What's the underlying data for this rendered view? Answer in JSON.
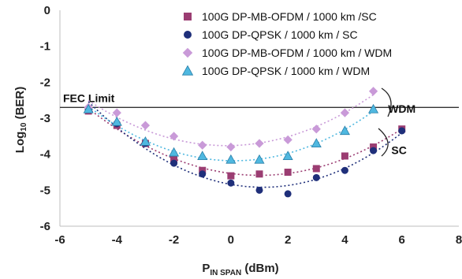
{
  "chart_data": {
    "type": "scatter",
    "title": "",
    "xlabel": {
      "main": "P",
      "sub": "IN SPAN",
      "unit": " (dBm)"
    },
    "ylabel": {
      "pre": "Log",
      "sub": "10",
      "post": " (BER)"
    },
    "xlim": [
      -6,
      8
    ],
    "ylim": [
      -6,
      0
    ],
    "xticks": [
      -6,
      -4,
      -2,
      0,
      2,
      4,
      6,
      8
    ],
    "yticks": [
      0,
      -1,
      -2,
      -3,
      -4,
      -5,
      -6
    ],
    "xtick_labels": [
      "-6",
      "-4",
      "-2",
      "0",
      "2",
      "4",
      "6",
      "8"
    ],
    "ytick_labels": [
      "0",
      "-1",
      "-2",
      "-3",
      "-4",
      "-5",
      "-6"
    ],
    "grid": false,
    "legend_position": "top-right",
    "fec_limit": {
      "y": -2.7,
      "label": "FEC Limit"
    },
    "annotations": [
      {
        "text": "WDM",
        "x": 6.0,
        "y": -2.85
      },
      {
        "text": "SC",
        "x": 5.9,
        "y": -4.0
      }
    ],
    "series": [
      {
        "name": "100G DP-MB-OFDM / 1000 km /SC",
        "marker": "square",
        "color": "#9b3d72",
        "x": [
          -5,
          -4,
          -3,
          -2,
          -1,
          0,
          1,
          2,
          3,
          4,
          5,
          6
        ],
        "y": [
          -2.8,
          -3.2,
          -3.7,
          -4.15,
          -4.45,
          -4.6,
          -4.55,
          -4.5,
          -4.4,
          -4.05,
          -3.8,
          -3.3
        ]
      },
      {
        "name": "100G DP-QPSK / 1000 km / SC",
        "marker": "circle",
        "color": "#1f2f7a",
        "x": [
          -5,
          -4,
          -3,
          -2,
          -1,
          0,
          1,
          2,
          3,
          4,
          5,
          6
        ],
        "y": [
          -2.75,
          -3.15,
          -3.7,
          -4.25,
          -4.55,
          -4.8,
          -5.0,
          -5.1,
          -4.65,
          -4.45,
          -3.9,
          -3.35
        ]
      },
      {
        "name": "100G DP-MB-OFDM / 1000 km / WDM",
        "marker": "diamond",
        "color": "#c99ad8",
        "x": [
          -5,
          -4,
          -3,
          -2,
          -1,
          0,
          1,
          2,
          3,
          4,
          5
        ],
        "y": [
          -2.7,
          -2.85,
          -3.2,
          -3.5,
          -3.75,
          -3.8,
          -3.7,
          -3.6,
          -3.3,
          -2.85,
          -2.25
        ]
      },
      {
        "name": "100G DP-QPSK / 1000 km / WDM",
        "marker": "triangle",
        "color": "#4fb8e0",
        "x": [
          -5,
          -4,
          -3,
          -2,
          -1,
          0,
          1,
          2,
          3,
          4,
          5
        ],
        "y": [
          -2.75,
          -3.1,
          -3.65,
          -3.95,
          -4.05,
          -4.15,
          -4.15,
          -4.05,
          -3.7,
          -3.35,
          -2.75
        ]
      }
    ]
  }
}
